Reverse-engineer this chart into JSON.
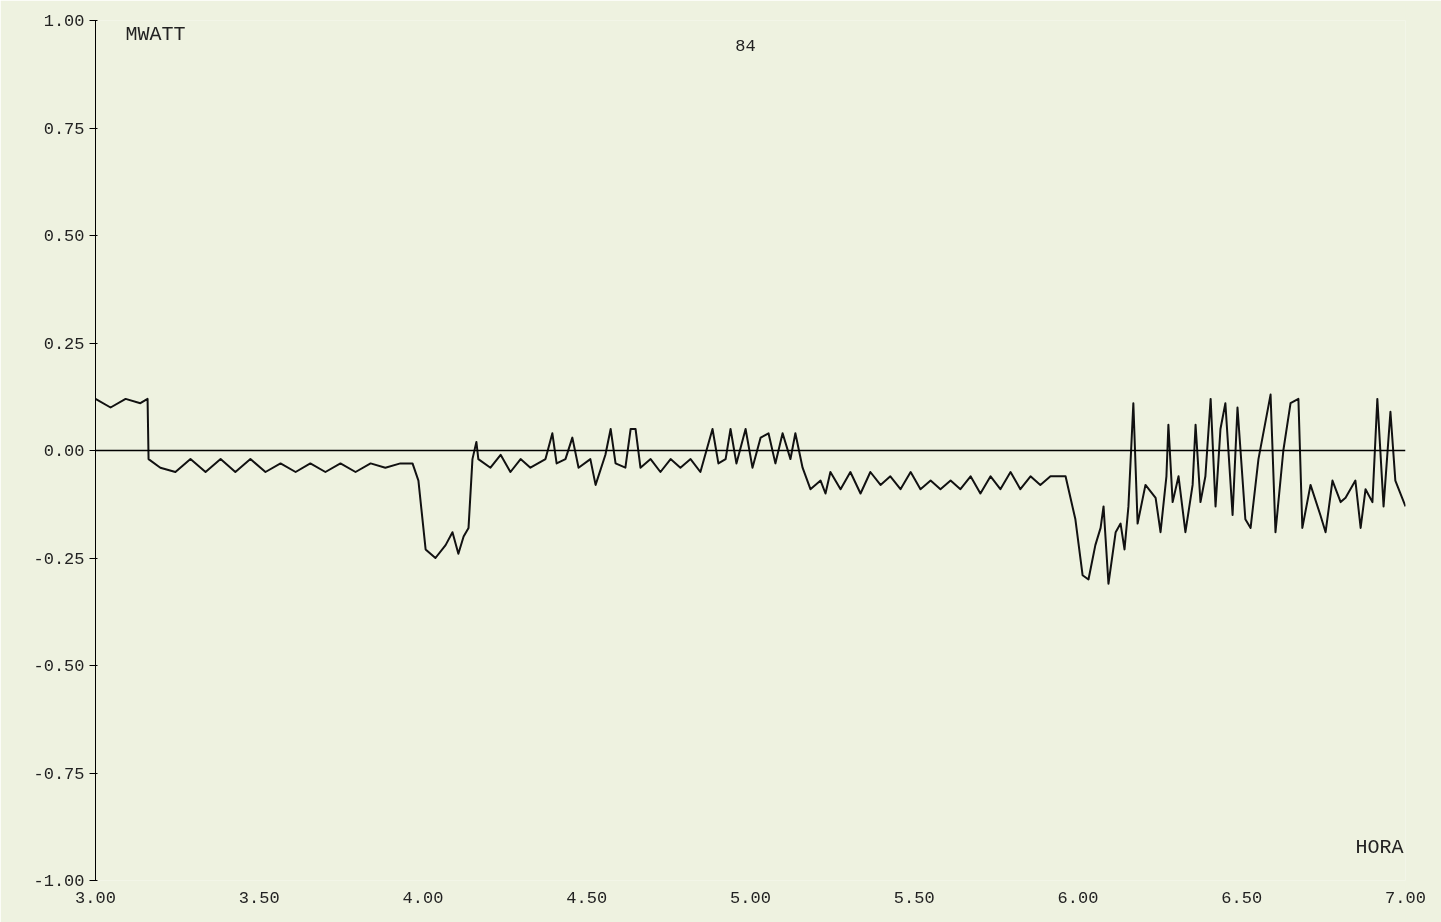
{
  "chart_data": {
    "type": "line",
    "ylabel": "MWATT",
    "xlabel": "HORA",
    "annotations": [
      "84"
    ],
    "xlim": [
      3,
      7
    ],
    "ylim": [
      -1,
      1
    ],
    "xticks": [
      {
        "value": 3,
        "label": "3.00"
      },
      {
        "value": 3.5,
        "label": "3.50"
      },
      {
        "value": 4,
        "label": "4.00"
      },
      {
        "value": 4.5,
        "label": "4.50"
      },
      {
        "value": 5,
        "label": "5.00"
      },
      {
        "value": 5.5,
        "label": "5.50"
      },
      {
        "value": 6,
        "label": "6.00"
      },
      {
        "value": 6.5,
        "label": "6.50"
      },
      {
        "value": 7,
        "label": "7.00"
      }
    ],
    "yticks": [
      {
        "value": 1,
        "label": "1.00"
      },
      {
        "value": 0.75,
        "label": "0.75"
      },
      {
        "value": 0.5,
        "label": "0.50"
      },
      {
        "value": 0.25,
        "label": "0.25"
      },
      {
        "value": 0,
        "label": "0.00"
      },
      {
        "value": -0.25,
        "label": "-0.25"
      },
      {
        "value": -0.5,
        "label": "-0.50"
      },
      {
        "value": -0.75,
        "label": "-0.75"
      },
      {
        "value": -1,
        "label": "-1.00"
      }
    ],
    "ref_lines": [
      {
        "axis": "y",
        "value": 0,
        "color": "#000000"
      }
    ],
    "grid": false,
    "marker": "none",
    "line_style": "solid",
    "series": [
      {
        "color": "#111111",
        "x": [
          3.0,
          3.046,
          3.092,
          3.137,
          3.159,
          3.162,
          3.198,
          3.244,
          3.29,
          3.336,
          3.382,
          3.427,
          3.473,
          3.519,
          3.565,
          3.611,
          3.656,
          3.702,
          3.748,
          3.794,
          3.84,
          3.885,
          3.931,
          3.968,
          3.986,
          4.008,
          4.038,
          4.069,
          4.09,
          4.108,
          4.124,
          4.139,
          4.151,
          4.163,
          4.169,
          4.206,
          4.237,
          4.267,
          4.298,
          4.328,
          4.374,
          4.395,
          4.408,
          4.435,
          4.456,
          4.475,
          4.511,
          4.527,
          4.557,
          4.573,
          4.588,
          4.618,
          4.634,
          4.649,
          4.664,
          4.695,
          4.725,
          4.756,
          4.786,
          4.817,
          4.847,
          4.884,
          4.902,
          4.924,
          4.939,
          4.957,
          4.985,
          5.006,
          5.031,
          5.055,
          5.076,
          5.098,
          5.122,
          5.137,
          5.159,
          5.183,
          5.214,
          5.229,
          5.244,
          5.275,
          5.305,
          5.336,
          5.366,
          5.397,
          5.427,
          5.458,
          5.489,
          5.519,
          5.55,
          5.58,
          5.611,
          5.641,
          5.672,
          5.702,
          5.733,
          5.763,
          5.794,
          5.824,
          5.855,
          5.885,
          5.916,
          5.962,
          5.977,
          5.992,
          6.014,
          6.032,
          6.053,
          6.069,
          6.078,
          6.093,
          6.115,
          6.13,
          6.142,
          6.154,
          6.169,
          6.182,
          6.206,
          6.237,
          6.252,
          6.27,
          6.276,
          6.289,
          6.307,
          6.328,
          6.35,
          6.359,
          6.374,
          6.389,
          6.405,
          6.42,
          6.435,
          6.45,
          6.472,
          6.487,
          6.511,
          6.527,
          6.551,
          6.588,
          6.603,
          6.627,
          6.649,
          6.673,
          6.685,
          6.71,
          6.74,
          6.756,
          6.777,
          6.802,
          6.817,
          6.847,
          6.863,
          6.878,
          6.899,
          6.914,
          6.933,
          6.954,
          6.969,
          7.0
        ],
        "values": [
          0.12,
          0.1,
          0.12,
          0.11,
          0.12,
          -0.02,
          -0.04,
          -0.05,
          -0.02,
          -0.05,
          -0.02,
          -0.05,
          -0.02,
          -0.05,
          -0.03,
          -0.05,
          -0.03,
          -0.05,
          -0.03,
          -0.05,
          -0.03,
          -0.04,
          -0.03,
          -0.03,
          -0.07,
          -0.23,
          -0.25,
          -0.22,
          -0.19,
          -0.24,
          -0.2,
          -0.18,
          -0.02,
          0.02,
          -0.02,
          -0.04,
          -0.01,
          -0.05,
          -0.02,
          -0.04,
          -0.02,
          0.04,
          -0.03,
          -0.02,
          0.03,
          -0.04,
          -0.02,
          -0.08,
          -0.01,
          0.05,
          -0.03,
          -0.04,
          0.05,
          0.05,
          -0.04,
          -0.02,
          -0.05,
          -0.02,
          -0.04,
          -0.02,
          -0.05,
          0.05,
          -0.03,
          -0.02,
          0.05,
          -0.03,
          0.05,
          -0.04,
          0.03,
          0.04,
          -0.03,
          0.04,
          -0.02,
          0.04,
          -0.04,
          -0.09,
          -0.07,
          -0.1,
          -0.05,
          -0.09,
          -0.05,
          -0.1,
          -0.05,
          -0.08,
          -0.06,
          -0.09,
          -0.05,
          -0.09,
          -0.07,
          -0.09,
          -0.07,
          -0.09,
          -0.06,
          -0.1,
          -0.06,
          -0.09,
          -0.05,
          -0.09,
          -0.06,
          -0.08,
          -0.06,
          -0.06,
          -0.11,
          -0.16,
          -0.29,
          -0.3,
          -0.22,
          -0.18,
          -0.13,
          -0.31,
          -0.19,
          -0.17,
          -0.23,
          -0.13,
          0.11,
          -0.17,
          -0.08,
          -0.11,
          -0.19,
          -0.06,
          0.06,
          -0.12,
          -0.06,
          -0.19,
          -0.08,
          0.06,
          -0.12,
          -0.06,
          0.12,
          -0.13,
          0.05,
          0.11,
          -0.15,
          0.1,
          -0.16,
          -0.18,
          -0.02,
          0.13,
          -0.19,
          0.0,
          0.11,
          0.12,
          -0.18,
          -0.08,
          -0.15,
          -0.19,
          -0.07,
          -0.12,
          -0.11,
          -0.07,
          -0.18,
          -0.09,
          -0.12,
          0.12,
          -0.13,
          0.09,
          -0.07,
          -0.13
        ]
      }
    ]
  }
}
